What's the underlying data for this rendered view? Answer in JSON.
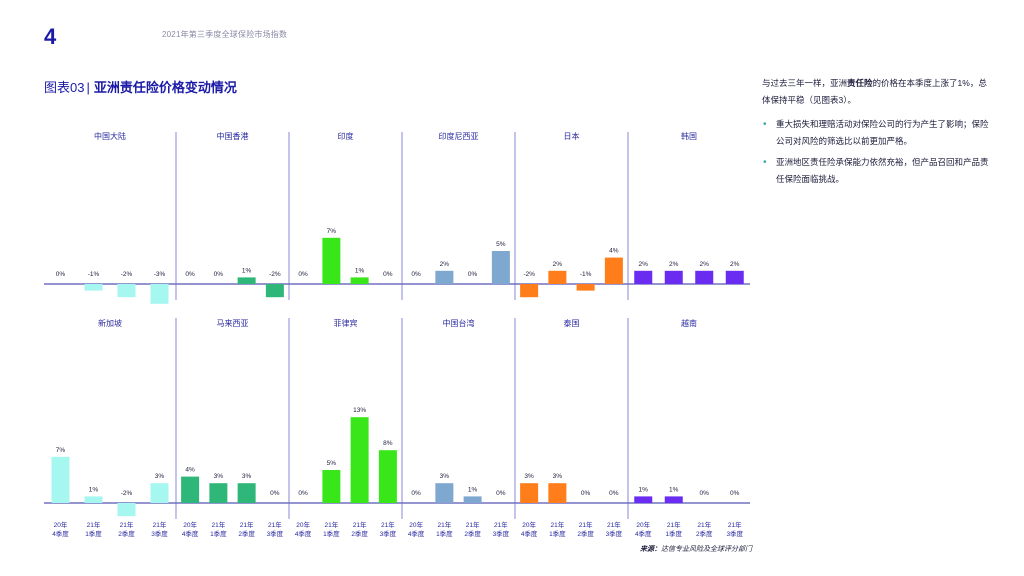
{
  "page": {
    "number": "4",
    "header": "2021年第三季度全球保险市场指数"
  },
  "figure": {
    "label": "图表03",
    "separator": "|",
    "title": "亚洲责任险价格变动情况"
  },
  "text": {
    "intro_pre": "与过去三年一样，亚洲",
    "intro_bold": "责任险",
    "intro_post": "的价格在本季度上涨了1%，总体保持平稳（见图表3）。",
    "bullets": [
      "重大损失和理赔活动对保险公司的行为产生了影响；保险公司对风险的筛选比以前更加严格。",
      "亚洲地区责任险承保能力依然充裕，但产品召回和产品责任保险面临挑战。"
    ]
  },
  "source": {
    "label": "来源：",
    "text": "达信专业风险及全球评分部门"
  },
  "colors": {
    "title": "#1a1aa6",
    "axis": "#2a2aa0",
    "divider": "#6a6ad0"
  },
  "chart_data": {
    "type": "bar",
    "title": "亚洲责任险价格变动情况",
    "categories": [
      [
        "20年",
        "4季度"
      ],
      [
        "21年",
        "1季度"
      ],
      [
        "21年",
        "2季度"
      ],
      [
        "21年",
        "3季度"
      ]
    ],
    "value_suffix": "%",
    "ylim": [
      -4,
      14
    ],
    "panels": [
      {
        "name": "中国大陆",
        "color": "#a6f7f0",
        "values": [
          0,
          -1,
          -2,
          -3
        ]
      },
      {
        "name": "中国香港",
        "color": "#2fb77a",
        "values": [
          0,
          0,
          1,
          -2
        ]
      },
      {
        "name": "印度",
        "color": "#39e61a",
        "values": [
          0,
          7,
          1,
          0
        ]
      },
      {
        "name": "印度尼西亚",
        "color": "#7fa8d0",
        "values": [
          0,
          2,
          0,
          5
        ]
      },
      {
        "name": "日本",
        "color": "#ff7d1a",
        "values": [
          -2,
          2,
          -1,
          4
        ]
      },
      {
        "name": "韩国",
        "color": "#6a2cf0",
        "values": [
          2,
          2,
          2,
          2
        ]
      },
      {
        "name": "新加坡",
        "color": "#a6f7f0",
        "values": [
          7,
          1,
          -2,
          3
        ]
      },
      {
        "name": "马来西亚",
        "color": "#2fb77a",
        "values": [
          4,
          3,
          3,
          0
        ]
      },
      {
        "name": "菲律宾",
        "color": "#39e61a",
        "values": [
          0,
          5,
          13,
          8
        ]
      },
      {
        "name": "中国台湾",
        "color": "#7fa8d0",
        "values": [
          0,
          3,
          1,
          0
        ]
      },
      {
        "name": "泰国",
        "color": "#ff7d1a",
        "values": [
          3,
          3,
          0,
          0
        ]
      },
      {
        "name": "越南",
        "color": "#6a2cf0",
        "values": [
          1,
          1,
          0,
          0
        ]
      }
    ]
  }
}
